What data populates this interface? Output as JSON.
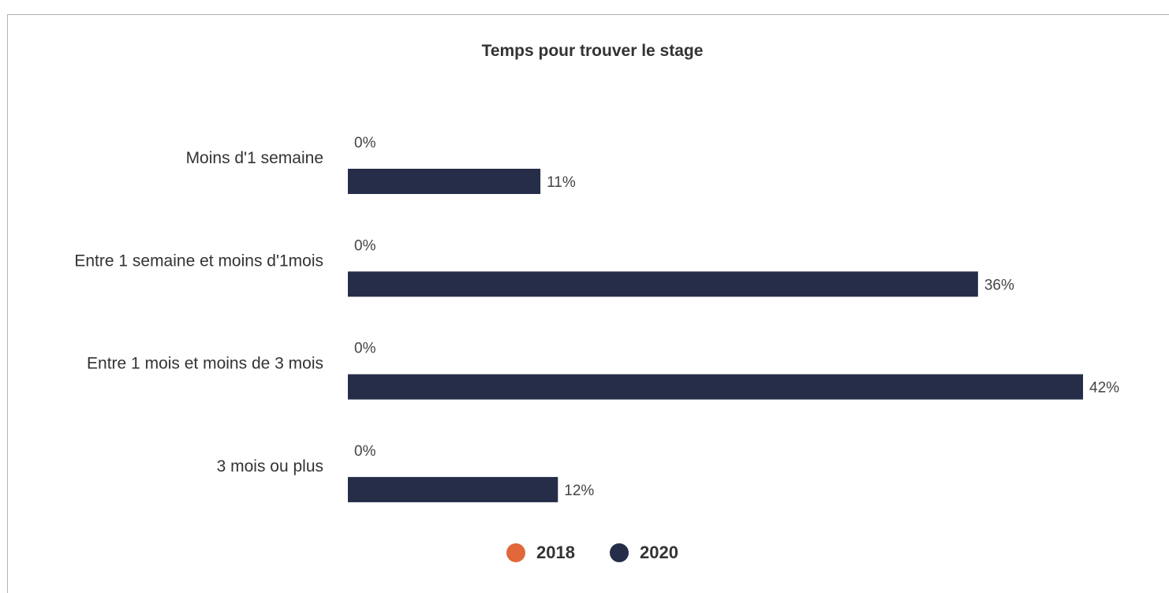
{
  "chart_data": {
    "type": "bar",
    "orientation": "horizontal",
    "title": "Temps pour trouver le stage",
    "categories": [
      "Moins d'1 semaine",
      "Entre 1 semaine et moins d'1mois",
      "Entre 1 mois et moins de 3 mois",
      "3 mois ou plus"
    ],
    "series": [
      {
        "name": "2018",
        "color": "#e0683a",
        "values": [
          0,
          0,
          0,
          0
        ],
        "labels": [
          "0%",
          "0%",
          "0%",
          "0%"
        ]
      },
      {
        "name": "2020",
        "color": "#252d48",
        "values": [
          11,
          36,
          42,
          12
        ],
        "labels": [
          "11%",
          "36%",
          "42%",
          "12%"
        ]
      }
    ],
    "xlim": [
      0,
      42
    ],
    "grid": false,
    "legend_position": "bottom-center"
  }
}
